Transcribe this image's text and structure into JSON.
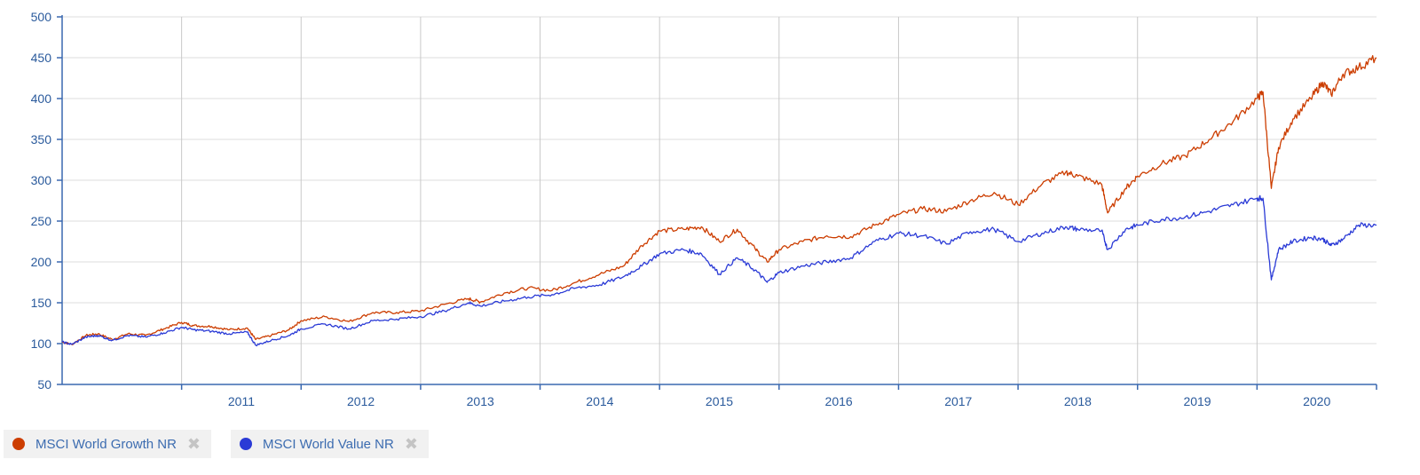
{
  "chart_data": {
    "type": "line",
    "title": "",
    "xlabel": "",
    "ylabel": "",
    "ylim": [
      50,
      500
    ],
    "yticks": [
      50,
      100,
      150,
      200,
      250,
      300,
      350,
      400,
      450,
      500
    ],
    "xlim": [
      2010.0,
      2021.0
    ],
    "xticks": [
      "2011",
      "2012",
      "2013",
      "2014",
      "2015",
      "2016",
      "2017",
      "2018",
      "2019",
      "2020"
    ],
    "grid": true,
    "legend": "bottom-left",
    "series": [
      {
        "name": "MSCI World Growth NR",
        "color": "#cc3d00",
        "points": [
          [
            2010.0,
            102
          ],
          [
            2010.08,
            99
          ],
          [
            2010.2,
            110
          ],
          [
            2010.3,
            112
          ],
          [
            2010.42,
            105
          ],
          [
            2010.55,
            112
          ],
          [
            2010.7,
            110
          ],
          [
            2010.85,
            118
          ],
          [
            2011.0,
            126
          ],
          [
            2011.1,
            122
          ],
          [
            2011.25,
            121
          ],
          [
            2011.4,
            117
          ],
          [
            2011.55,
            119
          ],
          [
            2011.62,
            105
          ],
          [
            2011.75,
            110
          ],
          [
            2011.9,
            117
          ],
          [
            2012.0,
            128
          ],
          [
            2012.2,
            133
          ],
          [
            2012.4,
            127
          ],
          [
            2012.6,
            138
          ],
          [
            2012.8,
            138
          ],
          [
            2013.0,
            140
          ],
          [
            2013.2,
            148
          ],
          [
            2013.4,
            155
          ],
          [
            2013.5,
            151
          ],
          [
            2013.7,
            162
          ],
          [
            2013.9,
            168
          ],
          [
            2014.1,
            165
          ],
          [
            2014.3,
            175
          ],
          [
            2014.5,
            185
          ],
          [
            2014.7,
            195
          ],
          [
            2014.85,
            220
          ],
          [
            2015.0,
            238
          ],
          [
            2015.2,
            240
          ],
          [
            2015.35,
            243
          ],
          [
            2015.5,
            225
          ],
          [
            2015.65,
            240
          ],
          [
            2015.8,
            216
          ],
          [
            2015.9,
            200
          ],
          [
            2016.0,
            215
          ],
          [
            2016.2,
            225
          ],
          [
            2016.4,
            232
          ],
          [
            2016.6,
            231
          ],
          [
            2016.8,
            245
          ],
          [
            2017.0,
            258
          ],
          [
            2017.2,
            265
          ],
          [
            2017.4,
            262
          ],
          [
            2017.6,
            275
          ],
          [
            2017.8,
            285
          ],
          [
            2018.0,
            270
          ],
          [
            2018.2,
            295
          ],
          [
            2018.4,
            310
          ],
          [
            2018.5,
            305
          ],
          [
            2018.7,
            295
          ],
          [
            2018.75,
            260
          ],
          [
            2018.9,
            290
          ],
          [
            2019.0,
            305
          ],
          [
            2019.2,
            320
          ],
          [
            2019.4,
            330
          ],
          [
            2019.6,
            350
          ],
          [
            2019.8,
            372
          ],
          [
            2020.0,
            400
          ],
          [
            2020.05,
            408
          ],
          [
            2020.12,
            290
          ],
          [
            2020.18,
            340
          ],
          [
            2020.3,
            375
          ],
          [
            2020.45,
            400
          ],
          [
            2020.55,
            420
          ],
          [
            2020.62,
            405
          ],
          [
            2020.72,
            430
          ],
          [
            2020.85,
            438
          ],
          [
            2021.0,
            450
          ]
        ]
      },
      {
        "name": "MSCI World Value NR",
        "color": "#2a3ad6",
        "points": [
          [
            2010.0,
            102
          ],
          [
            2010.08,
            99
          ],
          [
            2010.2,
            108
          ],
          [
            2010.3,
            110
          ],
          [
            2010.42,
            104
          ],
          [
            2010.55,
            110
          ],
          [
            2010.7,
            108
          ],
          [
            2010.85,
            113
          ],
          [
            2011.0,
            120
          ],
          [
            2011.1,
            117
          ],
          [
            2011.25,
            115
          ],
          [
            2011.4,
            112
          ],
          [
            2011.55,
            114
          ],
          [
            2011.62,
            98
          ],
          [
            2011.75,
            104
          ],
          [
            2011.9,
            110
          ],
          [
            2012.0,
            118
          ],
          [
            2012.2,
            124
          ],
          [
            2012.4,
            118
          ],
          [
            2012.6,
            128
          ],
          [
            2012.8,
            130
          ],
          [
            2013.0,
            133
          ],
          [
            2013.2,
            140
          ],
          [
            2013.4,
            150
          ],
          [
            2013.5,
            146
          ],
          [
            2013.7,
            152
          ],
          [
            2013.9,
            157
          ],
          [
            2014.1,
            160
          ],
          [
            2014.3,
            168
          ],
          [
            2014.5,
            172
          ],
          [
            2014.7,
            182
          ],
          [
            2014.85,
            195
          ],
          [
            2015.0,
            210
          ],
          [
            2015.2,
            215
          ],
          [
            2015.35,
            210
          ],
          [
            2015.5,
            185
          ],
          [
            2015.65,
            205
          ],
          [
            2015.8,
            190
          ],
          [
            2015.9,
            175
          ],
          [
            2016.0,
            187
          ],
          [
            2016.2,
            195
          ],
          [
            2016.4,
            200
          ],
          [
            2016.6,
            205
          ],
          [
            2016.8,
            225
          ],
          [
            2017.0,
            235
          ],
          [
            2017.2,
            232
          ],
          [
            2017.4,
            222
          ],
          [
            2017.6,
            237
          ],
          [
            2017.8,
            240
          ],
          [
            2018.0,
            225
          ],
          [
            2018.2,
            235
          ],
          [
            2018.4,
            243
          ],
          [
            2018.5,
            240
          ],
          [
            2018.7,
            238
          ],
          [
            2018.75,
            215
          ],
          [
            2018.9,
            240
          ],
          [
            2019.0,
            245
          ],
          [
            2019.2,
            252
          ],
          [
            2019.4,
            255
          ],
          [
            2019.6,
            262
          ],
          [
            2019.8,
            270
          ],
          [
            2020.0,
            278
          ],
          [
            2020.05,
            278
          ],
          [
            2020.12,
            178
          ],
          [
            2020.18,
            215
          ],
          [
            2020.3,
            225
          ],
          [
            2020.45,
            230
          ],
          [
            2020.55,
            228
          ],
          [
            2020.62,
            220
          ],
          [
            2020.72,
            228
          ],
          [
            2020.85,
            245
          ],
          [
            2021.0,
            245
          ]
        ]
      }
    ]
  },
  "legend": {
    "items": [
      {
        "label": "MSCI World Growth NR",
        "color": "#cc3d00",
        "close": "✖"
      },
      {
        "label": "MSCI World Value NR",
        "color": "#2a3ad6",
        "close": "✖"
      }
    ]
  }
}
